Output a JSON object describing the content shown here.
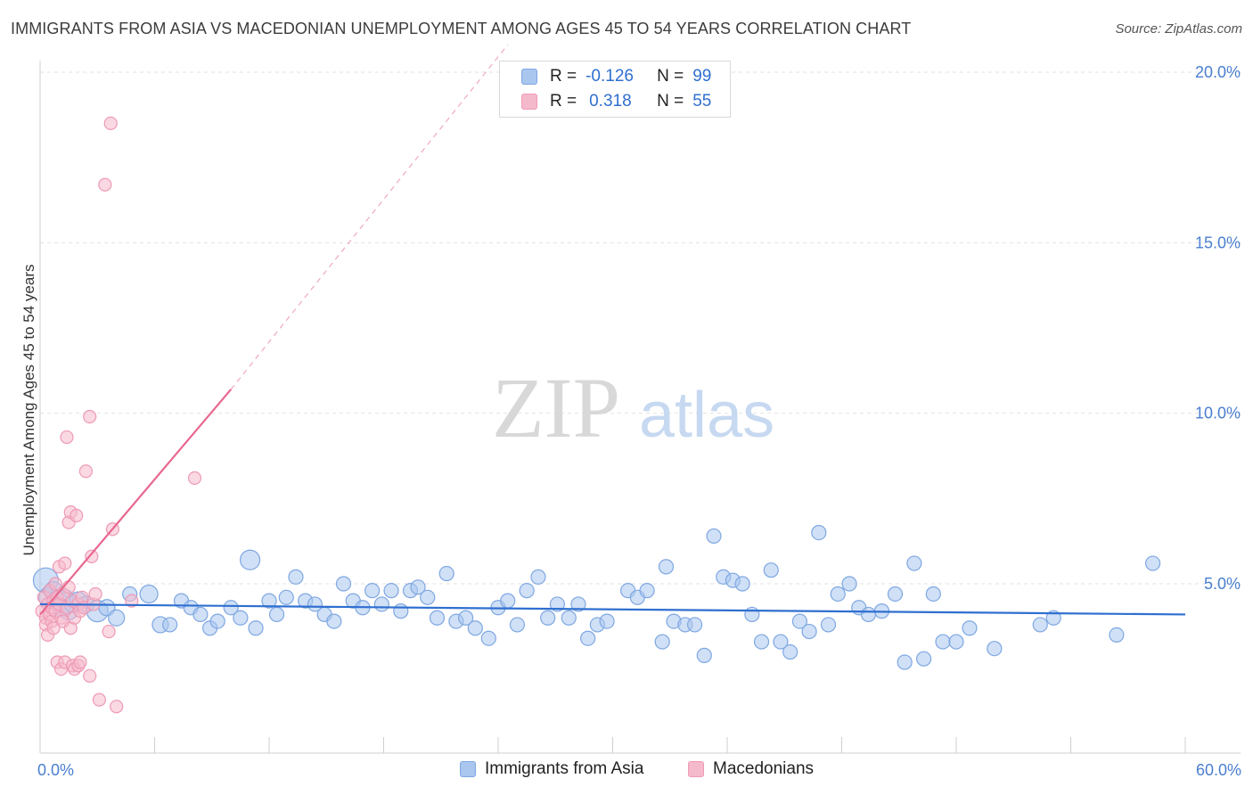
{
  "title": "IMMIGRANTS FROM ASIA VS MACEDONIAN UNEMPLOYMENT AMONG AGES 45 TO 54 YEARS CORRELATION CHART",
  "source": "Source: ZipAtlas.com",
  "watermark": {
    "zip": "ZIP",
    "atlas": "atlas"
  },
  "colors": {
    "blue_fill": "#a9c6ef",
    "blue_stroke": "#7ea7e2",
    "blue_line": "#2f6fd0",
    "pink_fill": "#f5b9cc",
    "pink_stroke": "#ee9ab5",
    "pink_line": "#e8688f",
    "grid": "#e2e2e2",
    "value_text": "#2f6fd0"
  },
  "legend": {
    "rows": [
      {
        "r_label": "R =",
        "r_value": "-0.126",
        "n_label": "N =",
        "n_value": "99"
      },
      {
        "r_label": "R =",
        "r_value": "0.318",
        "n_label": "N =",
        "n_value": "55"
      }
    ]
  },
  "bottom_legend": [
    "Immigrants from Asia",
    "Macedonians"
  ],
  "chart_data": {
    "type": "scatter",
    "title": "IMMIGRANTS FROM ASIA VS MACEDONIAN UNEMPLOYMENT AMONG AGES 45 TO 54 YEARS CORRELATION CHART",
    "xlabel": "",
    "ylabel": "Unemployment Among Ages 45 to 54 years",
    "xlim": [
      0,
      60
    ],
    "ylim": [
      0,
      20.8
    ],
    "x_tick_labels": [
      "0.0%",
      "60.0%"
    ],
    "y_ticks": [
      5,
      10,
      15,
      20
    ],
    "y_tick_labels": [
      "5.0%",
      "10.0%",
      "15.0%",
      "20.0%"
    ],
    "grid": true,
    "series": [
      {
        "name": "Immigrants from Asia",
        "color": "#a9c6ef",
        "R": -0.126,
        "N": 99,
        "trend": {
          "x": [
            0,
            60
          ],
          "y": [
            4.4,
            4.1
          ],
          "style": "solid"
        },
        "points": [
          [
            0.3,
            5.1,
            14
          ],
          [
            0.5,
            4.6,
            12
          ],
          [
            0.7,
            4.8,
            10
          ],
          [
            0.9,
            4.5,
            11
          ],
          [
            1.1,
            4.3,
            10
          ],
          [
            1.3,
            4.6,
            9
          ],
          [
            1.5,
            4.2,
            10
          ],
          [
            1.7,
            4.4,
            9
          ],
          [
            2.0,
            4.5,
            10
          ],
          [
            2.4,
            4.4,
            9
          ],
          [
            3.0,
            4.2,
            12
          ],
          [
            3.5,
            4.3,
            9
          ],
          [
            4.0,
            4.0,
            9
          ],
          [
            4.7,
            4.7,
            8
          ],
          [
            5.7,
            4.7,
            10
          ],
          [
            6.3,
            3.8,
            9
          ],
          [
            6.8,
            3.8,
            8
          ],
          [
            7.4,
            4.5,
            8
          ],
          [
            7.9,
            4.3,
            8
          ],
          [
            8.4,
            4.1,
            8
          ],
          [
            8.9,
            3.7,
            8
          ],
          [
            9.3,
            3.9,
            8
          ],
          [
            10.0,
            4.3,
            8
          ],
          [
            10.5,
            4.0,
            8
          ],
          [
            11.3,
            3.7,
            8
          ],
          [
            11.0,
            5.7,
            11
          ],
          [
            12.0,
            4.5,
            8
          ],
          [
            12.4,
            4.1,
            8
          ],
          [
            12.9,
            4.6,
            8
          ],
          [
            13.4,
            5.2,
            8
          ],
          [
            13.9,
            4.5,
            8
          ],
          [
            14.4,
            4.4,
            8
          ],
          [
            14.9,
            4.1,
            8
          ],
          [
            15.4,
            3.9,
            8
          ],
          [
            15.9,
            5.0,
            8
          ],
          [
            16.4,
            4.5,
            8
          ],
          [
            16.9,
            4.3,
            8
          ],
          [
            17.4,
            4.8,
            8
          ],
          [
            17.9,
            4.4,
            8
          ],
          [
            18.4,
            4.8,
            8
          ],
          [
            18.9,
            4.2,
            8
          ],
          [
            19.4,
            4.8,
            8
          ],
          [
            19.8,
            4.9,
            8
          ],
          [
            20.3,
            4.6,
            8
          ],
          [
            20.8,
            4.0,
            8
          ],
          [
            21.3,
            5.3,
            8
          ],
          [
            21.8,
            3.9,
            8
          ],
          [
            22.3,
            4.0,
            8
          ],
          [
            22.8,
            3.7,
            8
          ],
          [
            23.5,
            3.4,
            8
          ],
          [
            24.0,
            4.3,
            8
          ],
          [
            24.5,
            4.5,
            8
          ],
          [
            25.0,
            3.8,
            8
          ],
          [
            25.5,
            4.8,
            8
          ],
          [
            26.1,
            5.2,
            8
          ],
          [
            26.6,
            4.0,
            8
          ],
          [
            27.1,
            4.4,
            8
          ],
          [
            27.7,
            4.0,
            8
          ],
          [
            28.2,
            4.4,
            8
          ],
          [
            28.7,
            3.4,
            8
          ],
          [
            29.2,
            3.8,
            8
          ],
          [
            29.7,
            3.9,
            8
          ],
          [
            30.8,
            4.8,
            8
          ],
          [
            31.3,
            4.6,
            8
          ],
          [
            31.8,
            4.8,
            8
          ],
          [
            32.8,
            5.5,
            8
          ],
          [
            32.6,
            3.3,
            8
          ],
          [
            33.2,
            3.9,
            8
          ],
          [
            33.8,
            3.8,
            8
          ],
          [
            34.3,
            3.8,
            8
          ],
          [
            34.8,
            2.9,
            8
          ],
          [
            35.3,
            6.4,
            8
          ],
          [
            35.8,
            5.2,
            8
          ],
          [
            36.3,
            5.1,
            8
          ],
          [
            36.8,
            5.0,
            8
          ],
          [
            37.3,
            4.1,
            8
          ],
          [
            37.8,
            3.3,
            8
          ],
          [
            38.3,
            5.4,
            8
          ],
          [
            38.8,
            3.3,
            8
          ],
          [
            39.3,
            3.0,
            8
          ],
          [
            39.8,
            3.9,
            8
          ],
          [
            40.3,
            3.6,
            8
          ],
          [
            40.8,
            6.5,
            8
          ],
          [
            41.3,
            3.8,
            8
          ],
          [
            41.8,
            4.7,
            8
          ],
          [
            42.4,
            5.0,
            8
          ],
          [
            42.9,
            4.3,
            8
          ],
          [
            43.4,
            4.1,
            8
          ],
          [
            44.1,
            4.2,
            8
          ],
          [
            44.8,
            4.7,
            8
          ],
          [
            45.3,
            2.7,
            8
          ],
          [
            45.8,
            5.6,
            8
          ],
          [
            46.3,
            2.8,
            8
          ],
          [
            46.8,
            4.7,
            8
          ],
          [
            47.3,
            3.3,
            8
          ],
          [
            48.0,
            3.3,
            8
          ],
          [
            48.7,
            3.7,
            8
          ],
          [
            50.0,
            3.1,
            8
          ],
          [
            53.1,
            4.0,
            8
          ],
          [
            52.4,
            3.8,
            8
          ],
          [
            56.4,
            3.5,
            8
          ],
          [
            58.3,
            5.6,
            8
          ]
        ]
      },
      {
        "name": "Macedonians",
        "color": "#f5b9cc",
        "R": 0.318,
        "N": 55,
        "trend": {
          "x": [
            0,
            10.0
          ],
          "y": [
            4.1,
            10.7
          ],
          "style": "solid",
          "extension": {
            "x": [
              10.0,
              24.5
            ],
            "y": [
              10.7,
              20.8
            ],
            "style": "dashed"
          }
        },
        "points": [
          [
            0.1,
            4.2,
            7
          ],
          [
            0.2,
            4.6,
            7
          ],
          [
            0.3,
            4.0,
            7
          ],
          [
            0.3,
            3.8,
            7
          ],
          [
            0.4,
            4.4,
            7
          ],
          [
            0.4,
            3.5,
            7
          ],
          [
            0.5,
            4.8,
            7
          ],
          [
            0.5,
            4.1,
            7
          ],
          [
            0.6,
            4.3,
            7
          ],
          [
            0.6,
            3.9,
            7
          ],
          [
            0.7,
            4.5,
            7
          ],
          [
            0.7,
            3.7,
            7
          ],
          [
            0.8,
            5.0,
            7
          ],
          [
            0.8,
            4.2,
            7
          ],
          [
            0.9,
            4.6,
            7
          ],
          [
            0.9,
            2.7,
            7
          ],
          [
            1.0,
            4.4,
            7
          ],
          [
            1.0,
            5.5,
            7
          ],
          [
            1.1,
            4.0,
            7
          ],
          [
            1.1,
            2.5,
            7
          ],
          [
            1.2,
            4.7,
            7
          ],
          [
            1.2,
            3.9,
            7
          ],
          [
            1.3,
            5.6,
            7
          ],
          [
            1.3,
            2.7,
            7
          ],
          [
            1.4,
            4.3,
            7
          ],
          [
            1.4,
            9.3,
            7
          ],
          [
            1.5,
            6.8,
            7
          ],
          [
            1.5,
            4.9,
            7
          ],
          [
            1.6,
            3.7,
            7
          ],
          [
            1.6,
            7.1,
            7
          ],
          [
            1.7,
            4.5,
            7
          ],
          [
            1.7,
            2.6,
            7
          ],
          [
            1.8,
            4.0,
            7
          ],
          [
            1.8,
            2.5,
            7
          ],
          [
            1.9,
            7.0,
            7
          ],
          [
            2.0,
            4.4,
            7
          ],
          [
            2.0,
            2.6,
            7
          ],
          [
            2.1,
            4.2,
            7
          ],
          [
            2.1,
            2.7,
            7
          ],
          [
            2.2,
            4.6,
            7
          ],
          [
            2.3,
            4.3,
            7
          ],
          [
            2.4,
            8.3,
            7
          ],
          [
            2.6,
            9.9,
            7
          ],
          [
            2.8,
            4.4,
            7
          ],
          [
            2.6,
            2.3,
            7
          ],
          [
            2.7,
            5.8,
            7
          ],
          [
            2.9,
            4.7,
            7
          ],
          [
            3.1,
            1.6,
            7
          ],
          [
            3.4,
            16.7,
            7
          ],
          [
            3.6,
            3.6,
            7
          ],
          [
            3.8,
            6.6,
            7
          ],
          [
            3.7,
            18.5,
            7
          ],
          [
            4.0,
            1.4,
            7
          ],
          [
            4.8,
            4.5,
            7
          ],
          [
            8.1,
            8.1,
            7
          ]
        ]
      }
    ]
  }
}
